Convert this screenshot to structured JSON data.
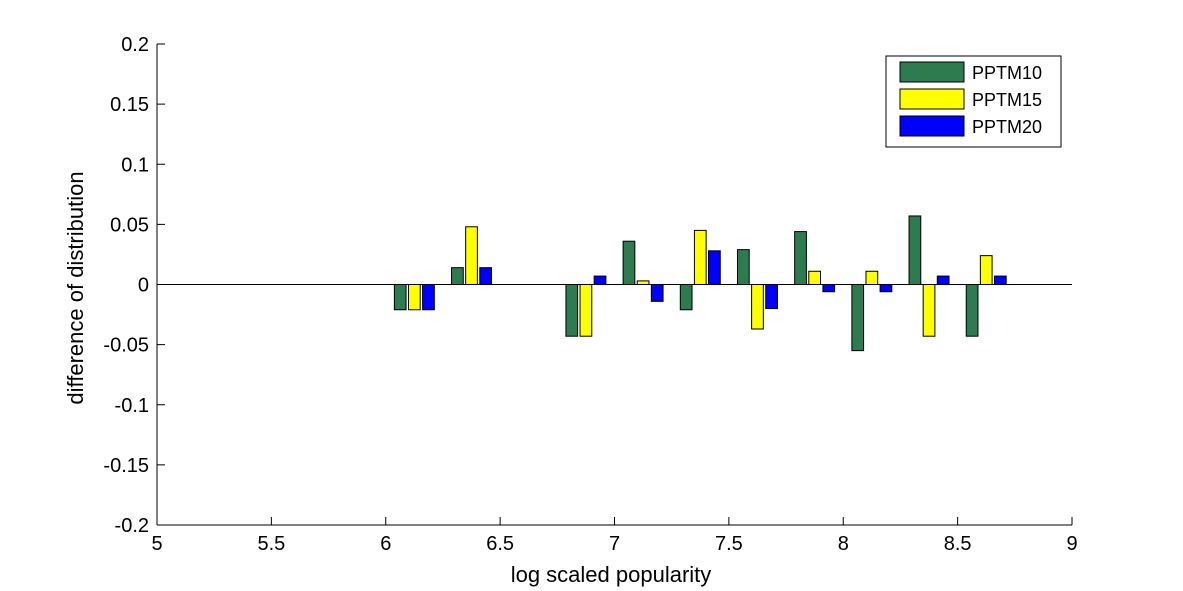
{
  "chart_data": {
    "type": "bar",
    "title": "",
    "xlabel": "log scaled popularity",
    "ylabel": "difference of distribution",
    "xlim": [
      5,
      9
    ],
    "ylim": [
      -0.2,
      0.2
    ],
    "xticks": [
      "5",
      "5.5",
      "6",
      "6.5",
      "7",
      "7.5",
      "8",
      "8.5",
      "9"
    ],
    "yticks": [
      "0.2",
      "0.15",
      "0.1",
      "0.05",
      "0",
      "-0.05",
      "-0.1",
      "-0.15",
      "-0.2"
    ],
    "grid": false,
    "legend_position": "top-right",
    "x": [
      6.125,
      6.375,
      6.875,
      7.125,
      7.375,
      7.625,
      7.875,
      8.125,
      8.375,
      8.625
    ],
    "series": [
      {
        "name": "PPTM10",
        "color": "#2e7b50",
        "values": [
          -0.021,
          0.014,
          -0.043,
          0.036,
          -0.021,
          0.029,
          0.044,
          -0.055,
          0.057,
          -0.043
        ]
      },
      {
        "name": "PPTM15",
        "color": "#ffff00",
        "values": [
          -0.021,
          0.048,
          -0.043,
          0.003,
          0.045,
          -0.037,
          0.011,
          0.011,
          -0.043,
          0.024
        ]
      },
      {
        "name": "PPTM20",
        "color": "#0000ff",
        "values": [
          -0.021,
          0.014,
          0.007,
          -0.014,
          0.028,
          -0.02,
          -0.006,
          -0.006,
          0.007,
          0.007
        ]
      }
    ]
  }
}
